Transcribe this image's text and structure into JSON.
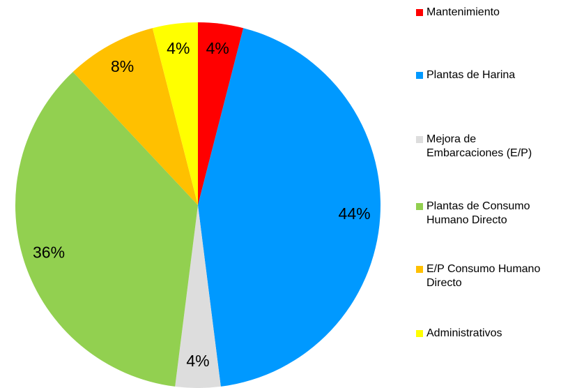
{
  "chart_data": {
    "type": "pie",
    "categories": [
      "Mantenimiento",
      "Plantas de Harina",
      "Mejora de Embarcaciones (E/P)",
      "Plantas de Consumo Humano Directo",
      "E/P Consumo Humano Directo",
      "Administrativos"
    ],
    "values": [
      4,
      44,
      4,
      36,
      8,
      4
    ],
    "value_labels": [
      "4%",
      "44%",
      "4%",
      "36%",
      "8%",
      "4%"
    ],
    "colors": [
      "#ff0000",
      "#0099ff",
      "#dddddd",
      "#92d050",
      "#ffc000",
      "#ffff00"
    ],
    "legend": "right"
  }
}
